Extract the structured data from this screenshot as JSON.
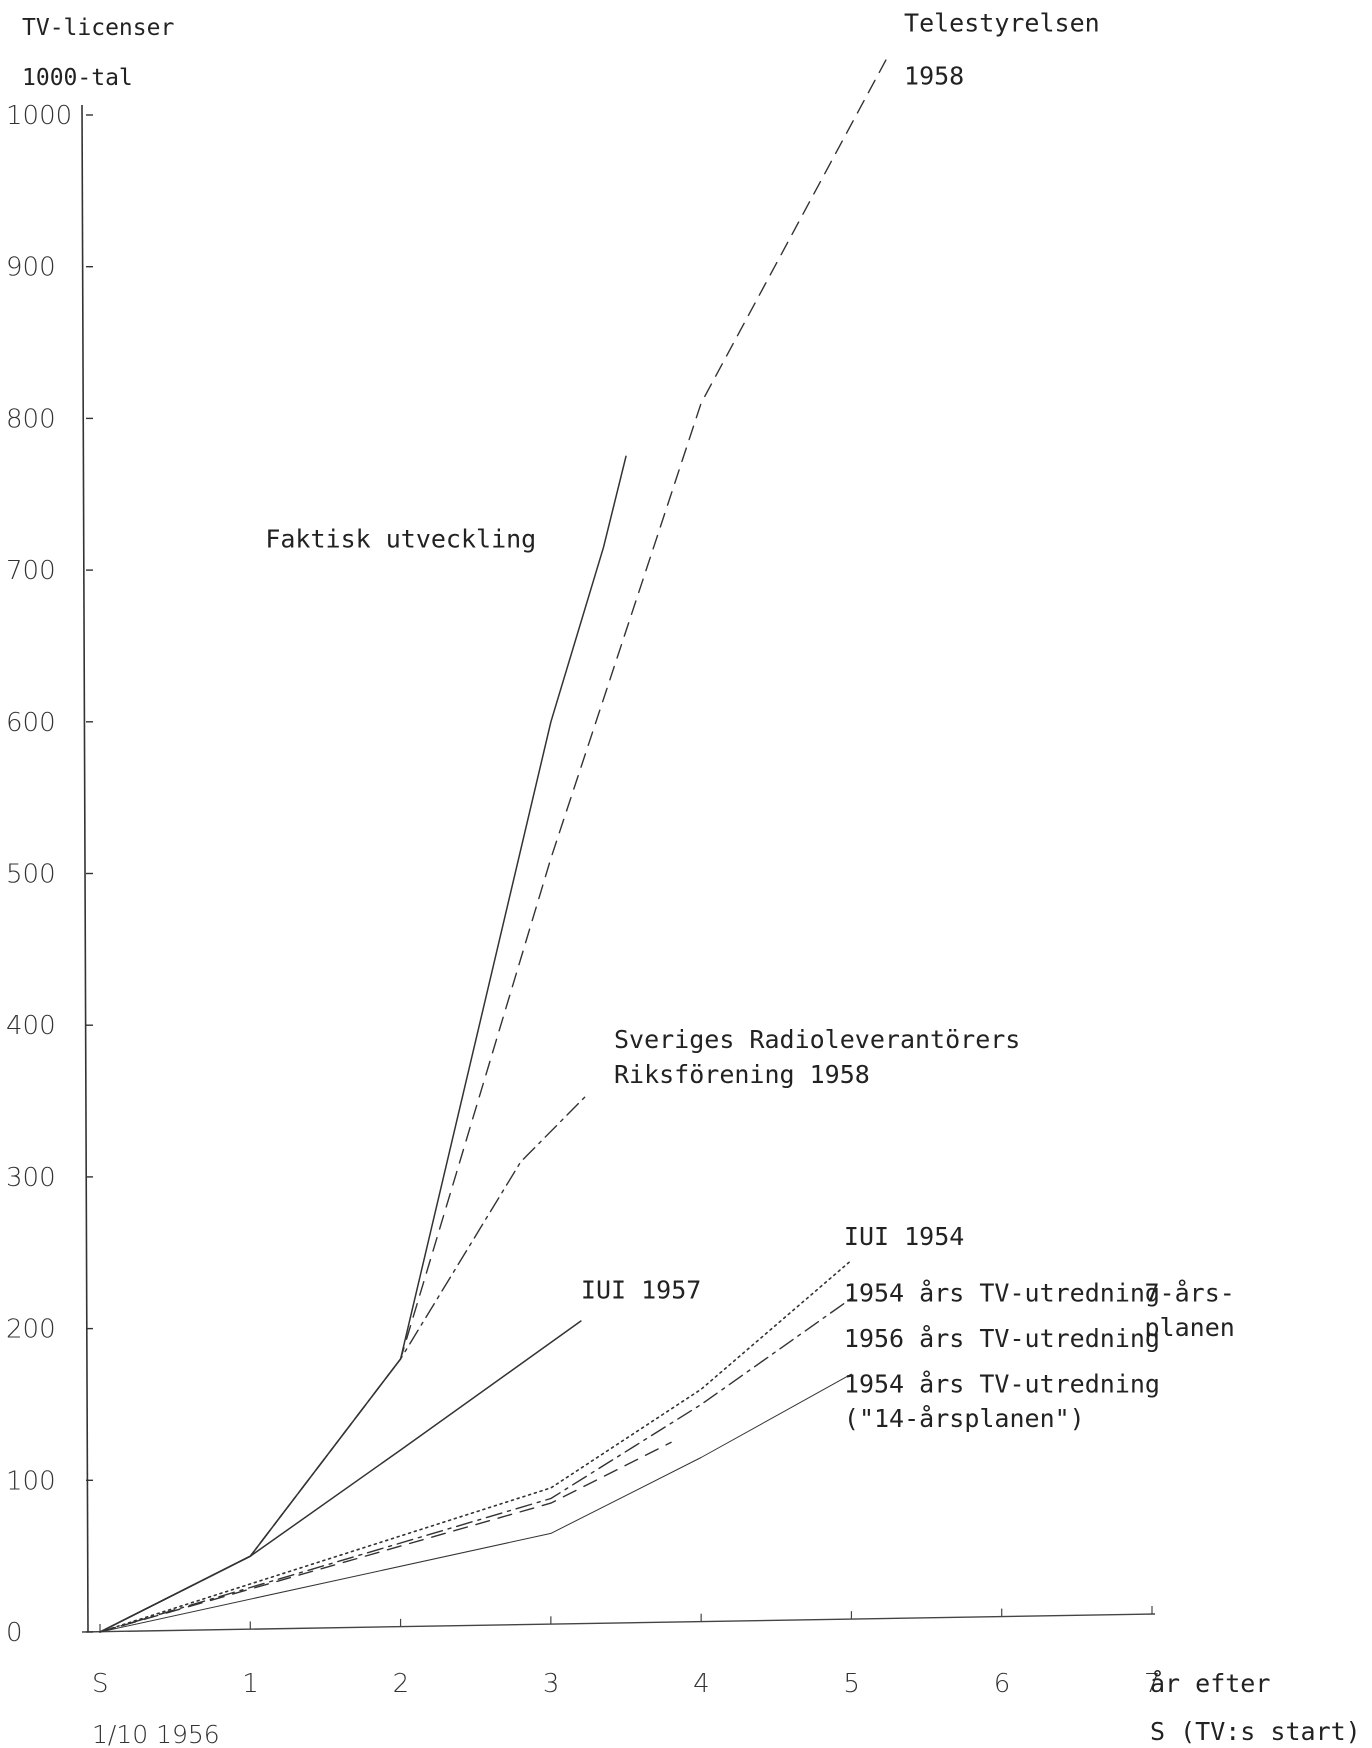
{
  "chart_data": {
    "type": "line",
    "ylabel": [
      "TV-licenser",
      "1000-tal"
    ],
    "xlabel_right": [
      "år efter",
      "S (TV:s start)"
    ],
    "x_start_label": "S",
    "x_start_date": "1/10 1956",
    "x_ticks": [
      {
        "value": 0,
        "label": "S"
      },
      {
        "value": 1,
        "label": "1"
      },
      {
        "value": 2,
        "label": "2"
      },
      {
        "value": 3,
        "label": "3"
      },
      {
        "value": 4,
        "label": "4"
      },
      {
        "value": 5,
        "label": "5"
      },
      {
        "value": 6,
        "label": "6"
      },
      {
        "value": 7,
        "label": "7"
      }
    ],
    "y_ticks": [
      0,
      100,
      200,
      300,
      400,
      500,
      600,
      700,
      800,
      900,
      1000
    ],
    "xlim": [
      0,
      7
    ],
    "ylim": [
      0,
      1000
    ],
    "grid": false,
    "series": [
      {
        "name": "Faktisk utveckling",
        "style": "solid",
        "points": [
          [
            0,
            0
          ],
          [
            1,
            50
          ],
          [
            2,
            180
          ],
          [
            3,
            600
          ],
          [
            3.35,
            715
          ],
          [
            3.5,
            775
          ]
        ]
      },
      {
        "name": "Telestyrelsen 1958",
        "style": "dashed",
        "points": [
          [
            0,
            0
          ],
          [
            1,
            50
          ],
          [
            2,
            180
          ],
          [
            3,
            510
          ],
          [
            3.7,
            720
          ],
          [
            4,
            810
          ],
          [
            5.25,
            1040
          ]
        ]
      },
      {
        "name": "Sveriges Radioleverantörers Riksförening 1958",
        "style": "dashdot",
        "points": [
          [
            0,
            0
          ],
          [
            1,
            50
          ],
          [
            2,
            180
          ],
          [
            2.8,
            310
          ],
          [
            3.25,
            355
          ]
        ]
      },
      {
        "name": "IUI 1957",
        "style": "solid",
        "points": [
          [
            0,
            0
          ],
          [
            1,
            50
          ],
          [
            2,
            120
          ],
          [
            3.2,
            205
          ]
        ]
      },
      {
        "name": "IUI 1954",
        "style": "dotted",
        "points": [
          [
            0,
            0
          ],
          [
            3,
            95
          ],
          [
            4,
            160
          ],
          [
            5,
            245
          ]
        ]
      },
      {
        "name": "1954 års TV-utredning 7-årsplanen",
        "style": "dashdot",
        "points": [
          [
            0,
            0
          ],
          [
            3,
            88
          ],
          [
            4,
            150
          ],
          [
            5,
            220
          ]
        ]
      },
      {
        "name": "1956 års TV-utredning",
        "style": "dashed",
        "points": [
          [
            0,
            0
          ],
          [
            3,
            85
          ],
          [
            3.8,
            125
          ]
        ]
      },
      {
        "name": "1954 års TV-utredning (\"14-årsplanen\")",
        "style": "thin",
        "points": [
          [
            0,
            0
          ],
          [
            3,
            65
          ],
          [
            4,
            115
          ],
          [
            5,
            170
          ]
        ]
      }
    ],
    "annotations": [
      {
        "text": "Telestyrelsen",
        "x": 5.35,
        "y": 1055
      },
      {
        "text": "1958",
        "x": 5.35,
        "y": 1020
      },
      {
        "text": "Faktisk utveckling",
        "x": 1.1,
        "y": 715
      },
      {
        "text": "Sveriges Radioleverantörers",
        "x": 3.42,
        "y": 385
      },
      {
        "text": "Riksförening 1958",
        "x": 3.42,
        "y": 362
      },
      {
        "text": "IUI 1957",
        "x": 3.2,
        "y": 220
      },
      {
        "text": "IUI 1954",
        "x": 4.95,
        "y": 255
      },
      {
        "text": "1954 års TV-utredning",
        "x": 4.95,
        "y": 218
      },
      {
        "text": "1956 års TV-utredning",
        "x": 4.95,
        "y": 188
      },
      {
        "text": "1954 års TV-utredning",
        "x": 4.95,
        "y": 158
      },
      {
        "text": "(\"14-årsplanen\")",
        "x": 4.95,
        "y": 135
      },
      {
        "text": "7-års-",
        "x": 6.95,
        "y": 218
      },
      {
        "text": "planen",
        "x": 6.95,
        "y": 195
      }
    ]
  }
}
